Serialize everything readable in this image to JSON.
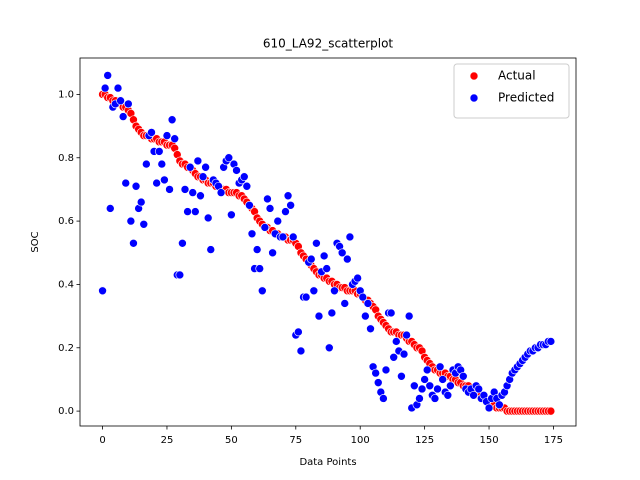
{
  "chart_data": {
    "type": "scatter",
    "title": "610_LA92_scatterplot",
    "x_label": "Data Points",
    "y_label": "SOC",
    "x": [
      0,
      1,
      2,
      3,
      4,
      5,
      6,
      7,
      8,
      9,
      10,
      11,
      12,
      13,
      14,
      15,
      16,
      17,
      18,
      19,
      20,
      21,
      22,
      23,
      24,
      25,
      26,
      27,
      28,
      29,
      30,
      31,
      32,
      33,
      34,
      35,
      36,
      37,
      38,
      39,
      40,
      41,
      42,
      43,
      44,
      45,
      46,
      47,
      48,
      49,
      50,
      51,
      52,
      53,
      54,
      55,
      56,
      57,
      58,
      59,
      60,
      61,
      62,
      63,
      64,
      65,
      66,
      67,
      68,
      69,
      70,
      71,
      72,
      73,
      74,
      75,
      76,
      77,
      78,
      79,
      80,
      81,
      82,
      83,
      84,
      85,
      86,
      87,
      88,
      89,
      90,
      91,
      92,
      93,
      94,
      95,
      96,
      97,
      98,
      99,
      100,
      101,
      102,
      103,
      104,
      105,
      106,
      107,
      108,
      109,
      110,
      111,
      112,
      113,
      114,
      115,
      116,
      117,
      118,
      119,
      120,
      121,
      122,
      123,
      124,
      125,
      126,
      127,
      128,
      129,
      130,
      131,
      132,
      133,
      134,
      135,
      136,
      137,
      138,
      139,
      140,
      141,
      142,
      143,
      144,
      145,
      146,
      147,
      148,
      149,
      150,
      151,
      152,
      153,
      154,
      155,
      156,
      157,
      158,
      159,
      160,
      161,
      162,
      163,
      164,
      165,
      166,
      167,
      168,
      169,
      170,
      171,
      172,
      173,
      174
    ],
    "series": [
      {
        "name": "Actual",
        "color": "#ff0000",
        "values": [
          1.0,
          1.0,
          0.99,
          0.99,
          0.98,
          0.98,
          0.97,
          0.97,
          0.96,
          0.96,
          0.95,
          0.94,
          0.92,
          0.9,
          0.89,
          0.88,
          0.87,
          0.87,
          0.87,
          0.86,
          0.86,
          0.86,
          0.85,
          0.85,
          0.85,
          0.84,
          0.84,
          0.84,
          0.83,
          0.81,
          0.79,
          0.78,
          0.78,
          0.77,
          0.77,
          0.76,
          0.75,
          0.74,
          0.74,
          0.73,
          0.73,
          0.72,
          0.72,
          0.72,
          0.71,
          0.71,
          0.7,
          0.7,
          0.7,
          0.69,
          0.69,
          0.69,
          0.69,
          0.68,
          0.68,
          0.67,
          0.66,
          0.65,
          0.64,
          0.63,
          0.61,
          0.6,
          0.59,
          0.58,
          0.58,
          0.57,
          0.57,
          0.56,
          0.56,
          0.55,
          0.55,
          0.55,
          0.54,
          0.54,
          0.54,
          0.53,
          0.52,
          0.5,
          0.49,
          0.48,
          0.47,
          0.46,
          0.45,
          0.44,
          0.43,
          0.43,
          0.42,
          0.42,
          0.41,
          0.41,
          0.4,
          0.4,
          0.39,
          0.39,
          0.39,
          0.38,
          0.38,
          0.38,
          0.38,
          0.37,
          0.37,
          0.36,
          0.35,
          0.35,
          0.34,
          0.33,
          0.32,
          0.3,
          0.29,
          0.28,
          0.27,
          0.26,
          0.25,
          0.25,
          0.25,
          0.24,
          0.24,
          0.24,
          0.23,
          0.22,
          0.22,
          0.21,
          0.2,
          0.2,
          0.19,
          0.17,
          0.16,
          0.15,
          0.14,
          0.13,
          0.13,
          0.12,
          0.12,
          0.12,
          0.11,
          0.11,
          0.1,
          0.1,
          0.09,
          0.09,
          0.08,
          0.08,
          0.08,
          0.07,
          0.07,
          0.06,
          0.05,
          0.05,
          0.04,
          0.03,
          0.03,
          0.02,
          0.02,
          0.01,
          0.01,
          0.01,
          0.01,
          0,
          0,
          0,
          0,
          0,
          0,
          0,
          0,
          0,
          0,
          0,
          0,
          0,
          0,
          0,
          0,
          0,
          0
        ]
      },
      {
        "name": "Predicted",
        "color": "#0000ff",
        "values": [
          0.38,
          1.02,
          1.06,
          0.64,
          0.96,
          0.97,
          1.02,
          0.98,
          0.93,
          0.72,
          0.97,
          0.6,
          0.53,
          0.71,
          0.64,
          0.66,
          0.59,
          0.78,
          0.87,
          0.88,
          0.82,
          0.72,
          0.82,
          0.78,
          0.73,
          0.87,
          0.7,
          0.92,
          0.86,
          0.43,
          0.43,
          0.53,
          0.7,
          0.63,
          0.77,
          0.69,
          0.63,
          0.79,
          0.68,
          0.74,
          0.77,
          0.61,
          0.51,
          0.73,
          0.72,
          0.71,
          0.69,
          0.77,
          0.79,
          0.8,
          0.62,
          0.78,
          0.76,
          0.72,
          0.73,
          0.74,
          0.71,
          0.65,
          0.56,
          0.45,
          0.51,
          0.45,
          0.38,
          0.58,
          0.67,
          0.64,
          0.5,
          0.56,
          0.6,
          0.55,
          0.55,
          0.63,
          0.68,
          0.65,
          0.55,
          0.24,
          0.25,
          0.19,
          0.36,
          0.36,
          0.47,
          0.48,
          0.38,
          0.53,
          0.3,
          0.44,
          0.49,
          0.45,
          0.2,
          0.31,
          0.38,
          0.53,
          0.52,
          0.5,
          0.34,
          0.48,
          0.55,
          0.4,
          0.41,
          0.42,
          0.38,
          0.36,
          0.3,
          0.34,
          0.26,
          0.14,
          0.12,
          0.09,
          0.06,
          0.04,
          0.13,
          0.31,
          0.31,
          0.17,
          0.22,
          0.19,
          0.11,
          0.18,
          0.24,
          0.3,
          0.01,
          0.08,
          0.02,
          0.04,
          0.07,
          0.1,
          0.13,
          0.08,
          0.05,
          0.04,
          0.07,
          0.14,
          0.1,
          0.06,
          0.05,
          0.08,
          0.13,
          0.12,
          0.14,
          0.13,
          0.11,
          0.07,
          0.06,
          0.07,
          0.05,
          0.08,
          0.07,
          0.04,
          0.05,
          0.03,
          0.01,
          0.04,
          0.06,
          0.04,
          0.02,
          0.05,
          0.06,
          0.08,
          0.1,
          0.12,
          0.13,
          0.14,
          0.15,
          0.16,
          0.17,
          0.18,
          0.19,
          0.19,
          0.2,
          0.2,
          0.21,
          0.21,
          0.21,
          0.22,
          0.22
        ]
      }
    ],
    "xlim": [
      -8.75,
      183.75
    ],
    "ylim": [
      -0.047,
      1.115
    ],
    "xticks": [
      0,
      25,
      50,
      75,
      100,
      125,
      150,
      175
    ],
    "yticks": [
      {
        "value": 0,
        "label": "0.0"
      },
      {
        "value": 0.2,
        "label": "0.2"
      },
      {
        "value": 0.4,
        "label": "0.4"
      },
      {
        "value": 0.6,
        "label": "0.6"
      },
      {
        "value": 0.8,
        "label": "0.8"
      },
      {
        "value": 1.0,
        "label": "1.0"
      }
    ],
    "legend": "upper right"
  }
}
